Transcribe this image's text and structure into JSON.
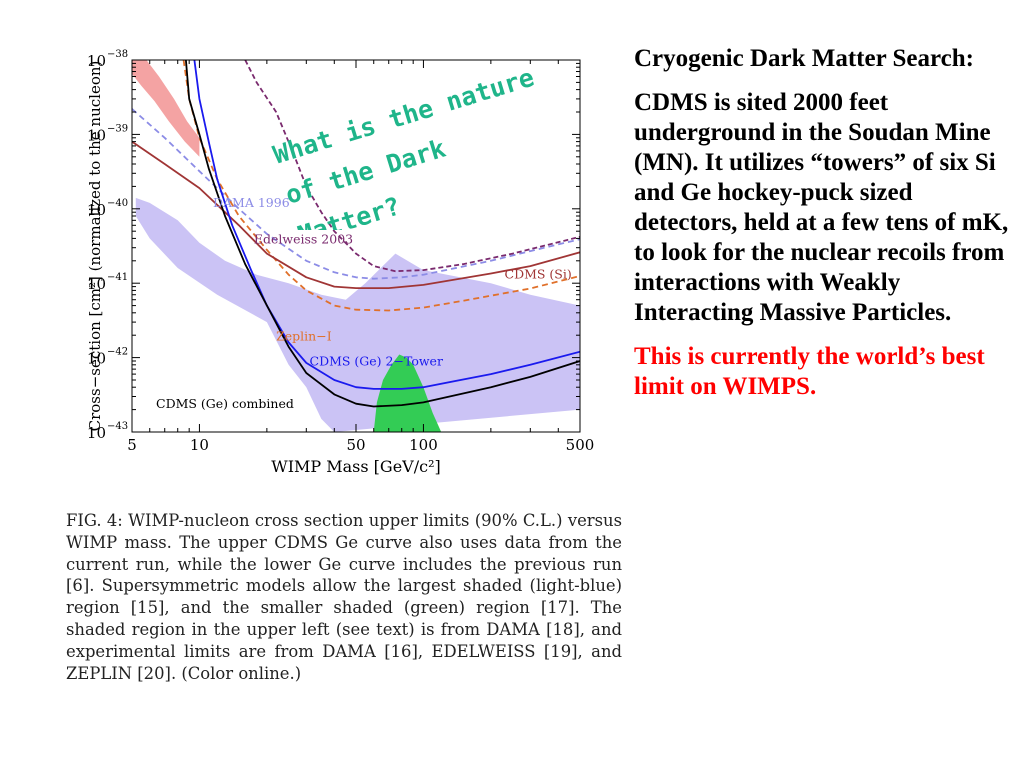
{
  "slide": {
    "question_lines": [
      "What is the nature",
      "of the Dark",
      "Matter?"
    ],
    "heading": "Cryogenic Dark Matter Search:",
    "body": "CDMS is sited 2000 feet underground in the Soudan Mine (MN). It utilizes “towers” of six Si and Ge hockey-puck sized detectors, held at a few tens of mK, to look for the nuclear recoils from interactions with Weakly Interacting Massive Particles.",
    "note": "This is currently the world’s best limit on WIMPS.",
    "caption": "FIG. 4: WIMP-nucleon cross section upper limits (90% C.L.) versus WIMP mass. The upper CDMS Ge curve also uses data from the current run, while the lower Ge curve includes the previous run [6]. Supersymmetric models allow the largest shaded (light-blue) region [15], and the smaller shaded (green) region [17]. The shaded region in the upper left (see text) is from DAMA [18], and experimental limits are from DAMA [16], EDELWEISS [19], and ZEPLIN [20]. (Color online.)",
    "question_color": "#1fb58a",
    "note_color": "#ff0000"
  },
  "chart_data": {
    "type": "line",
    "xlabel": "WIMP Mass [GeV/c²]",
    "ylabel": "Cross−section [cm²] (normalized to the nucleon)",
    "xscale": "log",
    "yscale": "log",
    "xlim": [
      5,
      500
    ],
    "ylim": [
      1e-43,
      1e-38
    ],
    "x_ticks": [
      {
        "value": 5,
        "label": "5"
      },
      {
        "value": 10,
        "label": "10"
      },
      {
        "value": 50,
        "label": "50"
      },
      {
        "value": 100,
        "label": "100"
      },
      {
        "value": 500,
        "label": "500"
      }
    ],
    "y_ticks": [
      {
        "value": 1e-38,
        "base": "10",
        "exp": "−38"
      },
      {
        "value": 1e-39,
        "base": "10",
        "exp": "−39"
      },
      {
        "value": 1e-40,
        "base": "10",
        "exp": "−40"
      },
      {
        "value": 1e-41,
        "base": "10",
        "exp": "−41"
      },
      {
        "value": 1e-42,
        "base": "10",
        "exp": "−42"
      },
      {
        "value": 1e-43,
        "base": "10",
        "exp": "−43"
      }
    ],
    "regions": [
      {
        "id": "susy-large",
        "color": "#cbc3f5",
        "points": [
          [
            5.2,
            1.4e-40
          ],
          [
            6,
            1.2e-40
          ],
          [
            8,
            7e-41
          ],
          [
            10,
            3.5e-41
          ],
          [
            13,
            2e-41
          ],
          [
            18,
            1.3e-41
          ],
          [
            25,
            1e-41
          ],
          [
            35,
            7e-42
          ],
          [
            45,
            6e-42
          ],
          [
            55,
            1e-41
          ],
          [
            75,
            2.5e-41
          ],
          [
            100,
            1.5e-41
          ],
          [
            200,
            1e-41
          ],
          [
            300,
            7e-42
          ],
          [
            500,
            5e-42
          ],
          [
            500,
            2e-43
          ],
          [
            40,
            1e-43
          ],
          [
            35,
            1.5e-43
          ],
          [
            30,
            4e-43
          ],
          [
            25,
            8e-43
          ],
          [
            20,
            3e-42
          ],
          [
            12,
            7e-42
          ],
          [
            8,
            1.6e-41
          ],
          [
            6,
            4e-41
          ],
          [
            5.2,
            8e-41
          ]
        ]
      },
      {
        "id": "susy-small",
        "color": "#33cc55",
        "points": [
          [
            60,
            1e-43
          ],
          [
            62,
            2.5e-43
          ],
          [
            66,
            5e-43
          ],
          [
            72,
            8e-43
          ],
          [
            78,
            1.1e-42
          ],
          [
            84,
            1e-42
          ],
          [
            90,
            8e-43
          ],
          [
            100,
            4e-43
          ],
          [
            110,
            1.8e-43
          ],
          [
            120,
            1e-43
          ]
        ]
      },
      {
        "id": "dama-region",
        "color": "#f4a3a3",
        "points": [
          [
            5,
            1.9e-38
          ],
          [
            5.8,
            1e-38
          ],
          [
            6.6,
            6e-39
          ],
          [
            7.7,
            3e-39
          ],
          [
            8.8,
            1.5e-39
          ],
          [
            10,
            9e-40
          ],
          [
            10,
            5e-40
          ],
          [
            8.6,
            8e-40
          ],
          [
            7.3,
            1.5e-39
          ],
          [
            6.3,
            2.8e-39
          ],
          [
            5.5,
            4.5e-39
          ],
          [
            5,
            6.5e-39
          ]
        ]
      }
    ],
    "series": [
      {
        "id": "dama-1996",
        "color": "#8c8ce6",
        "dash": "6,4",
        "points": [
          [
            5,
            2.2e-39
          ],
          [
            7,
            9e-40
          ],
          [
            10,
            3.2e-40
          ],
          [
            15,
            1e-40
          ],
          [
            20,
            4.6e-41
          ],
          [
            30,
            2e-41
          ],
          [
            40,
            1.4e-41
          ],
          [
            50,
            1.2e-41
          ],
          [
            60,
            1.15e-41
          ],
          [
            80,
            1.2e-41
          ],
          [
            100,
            1.3e-41
          ],
          [
            200,
            2e-41
          ],
          [
            300,
            2.7e-41
          ],
          [
            500,
            3.9e-41
          ]
        ]
      },
      {
        "id": "edelweiss-2003",
        "color": "#7a2a6e",
        "dash": "5,3",
        "points": [
          [
            16,
            1e-38
          ],
          [
            18,
            5e-39
          ],
          [
            22,
            2e-39
          ],
          [
            26,
            6e-40
          ],
          [
            30,
            2e-40
          ],
          [
            35,
            9e-41
          ],
          [
            40,
            5e-41
          ],
          [
            50,
            2.5e-41
          ],
          [
            60,
            1.7e-41
          ],
          [
            75,
            1.45e-41
          ],
          [
            100,
            1.5e-41
          ],
          [
            150,
            1.8e-41
          ],
          [
            250,
            2.5e-41
          ],
          [
            500,
            4.2e-41
          ]
        ]
      },
      {
        "id": "zeplin-i",
        "color": "#e0702a",
        "dash": "6,4",
        "points": [
          [
            8.5,
            1e-38
          ],
          [
            9,
            3e-39
          ],
          [
            10,
            9e-40
          ],
          [
            12,
            2.5e-40
          ],
          [
            15,
            8e-41
          ],
          [
            20,
            2.8e-41
          ],
          [
            25,
            1.3e-41
          ],
          [
            30,
            8e-42
          ],
          [
            40,
            5e-42
          ],
          [
            50,
            4.4e-42
          ],
          [
            70,
            4.3e-42
          ],
          [
            100,
            4.7e-42
          ],
          [
            150,
            5.8e-42
          ],
          [
            300,
            8.5e-42
          ],
          [
            500,
            1.25e-41
          ]
        ]
      },
      {
        "id": "cdms-si",
        "color": "#a03535",
        "dash": "",
        "points": [
          [
            5,
            8e-40
          ],
          [
            7,
            4e-40
          ],
          [
            10,
            1.9e-40
          ],
          [
            15,
            6e-41
          ],
          [
            20,
            2.5e-41
          ],
          [
            30,
            1.2e-41
          ],
          [
            40,
            9e-42
          ],
          [
            50,
            8.6e-42
          ],
          [
            70,
            8.6e-42
          ],
          [
            100,
            9.5e-42
          ],
          [
            200,
            1.35e-41
          ],
          [
            300,
            1.7e-41
          ],
          [
            500,
            2.6e-41
          ]
        ]
      },
      {
        "id": "cdms-ge-2tower",
        "color": "#1a1aee",
        "dash": "",
        "points": [
          [
            9.5,
            1e-38
          ],
          [
            10,
            3e-39
          ],
          [
            11,
            8e-40
          ],
          [
            12,
            2.5e-40
          ],
          [
            14,
            6e-41
          ],
          [
            17,
            1.5e-41
          ],
          [
            20,
            5e-42
          ],
          [
            25,
            1.6e-42
          ],
          [
            30,
            8.5e-43
          ],
          [
            40,
            5e-43
          ],
          [
            50,
            4e-43
          ],
          [
            60,
            3.8e-43
          ],
          [
            80,
            3.8e-43
          ],
          [
            100,
            4e-43
          ],
          [
            200,
            6e-43
          ],
          [
            300,
            8e-43
          ],
          [
            500,
            1.2e-42
          ]
        ]
      },
      {
        "id": "cdms-ge-combined",
        "color": "#000000",
        "dash": "",
        "points": [
          [
            8.7,
            1e-38
          ],
          [
            9,
            3e-39
          ],
          [
            10,
            1e-39
          ],
          [
            11,
            3.5e-40
          ],
          [
            13,
            8e-41
          ],
          [
            16,
            1.8e-41
          ],
          [
            20,
            5e-42
          ],
          [
            25,
            1.4e-42
          ],
          [
            30,
            6.2e-43
          ],
          [
            40,
            3.2e-43
          ],
          [
            50,
            2.4e-43
          ],
          [
            60,
            2.2e-43
          ],
          [
            80,
            2.3e-43
          ],
          [
            100,
            2.5e-43
          ],
          [
            200,
            4e-43
          ],
          [
            300,
            5.5e-43
          ],
          [
            500,
            9e-43
          ]
        ]
      }
    ],
    "annotations": [
      {
        "text": "DAMA 1996",
        "x": 11.5,
        "y": 1.05e-40,
        "color": "#8c8ce6",
        "anchor": "start"
      },
      {
        "text": "Edelweiss 2003",
        "x": 17.5,
        "y": 3.4e-41,
        "color": "#7a2a6e",
        "anchor": "start"
      },
      {
        "text": "CDMS (Si)",
        "x": 230,
        "y": 1.15e-41,
        "color": "#a03535",
        "anchor": "start"
      },
      {
        "text": "Zeplin−I",
        "x": 22,
        "y": 1.7e-42,
        "color": "#e0702a",
        "anchor": "start"
      },
      {
        "text": "CDMS (Ge) 2−Tower",
        "x": 31,
        "y": 7.8e-43,
        "color": "#1a1aee",
        "anchor": "start"
      },
      {
        "text": "CDMS (Ge) combined",
        "x": 6.4,
        "y": 2.1e-43,
        "color": "#000000",
        "anchor": "start"
      }
    ]
  }
}
